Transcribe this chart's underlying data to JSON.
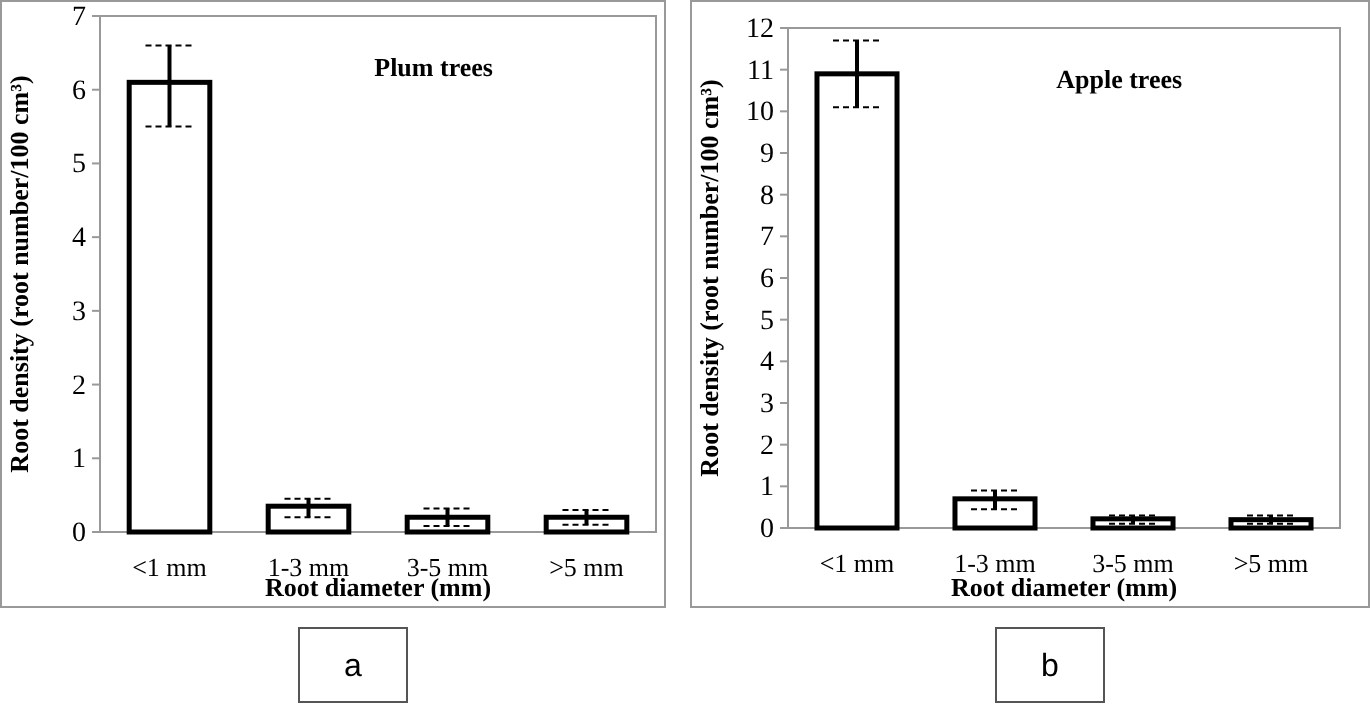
{
  "chart_data": [
    {
      "type": "bar",
      "title": "Plum trees",
      "xlabel": "Root diameter (mm)",
      "ylabel": "Root density (root number/100 cm³)",
      "categories": [
        "<1 mm",
        "1-3 mm",
        "3-5 mm",
        ">5 mm"
      ],
      "values": [
        6.1,
        0.35,
        0.2,
        0.2
      ],
      "errors": [
        [
          5.5,
          6.6
        ],
        [
          0.2,
          0.45
        ],
        [
          0.08,
          0.32
        ],
        [
          0.1,
          0.3
        ]
      ],
      "color": "#ffffff",
      "ylim": [
        0,
        7
      ],
      "yticks": [
        0,
        1,
        2,
        3,
        4,
        5,
        6,
        7
      ],
      "annotations": [
        "a"
      ]
    },
    {
      "type": "bar",
      "title": "Apple trees",
      "xlabel": "Root diameter (mm)",
      "ylabel": "Root density (root number/100 cm³)",
      "categories": [
        "<1 mm",
        "1-3 mm",
        "3-5 mm",
        ">5 mm"
      ],
      "values": [
        10.9,
        0.7,
        0.22,
        0.2
      ],
      "errors": [
        [
          10.1,
          11.7
        ],
        [
          0.45,
          0.9
        ],
        [
          0.1,
          0.3
        ],
        [
          0.1,
          0.3
        ]
      ],
      "color": "#ffffff",
      "ylim": [
        0,
        12
      ],
      "yticks": [
        0,
        1,
        2,
        3,
        4,
        5,
        6,
        7,
        8,
        9,
        10,
        11,
        12
      ],
      "annotations": [
        "b"
      ]
    }
  ]
}
